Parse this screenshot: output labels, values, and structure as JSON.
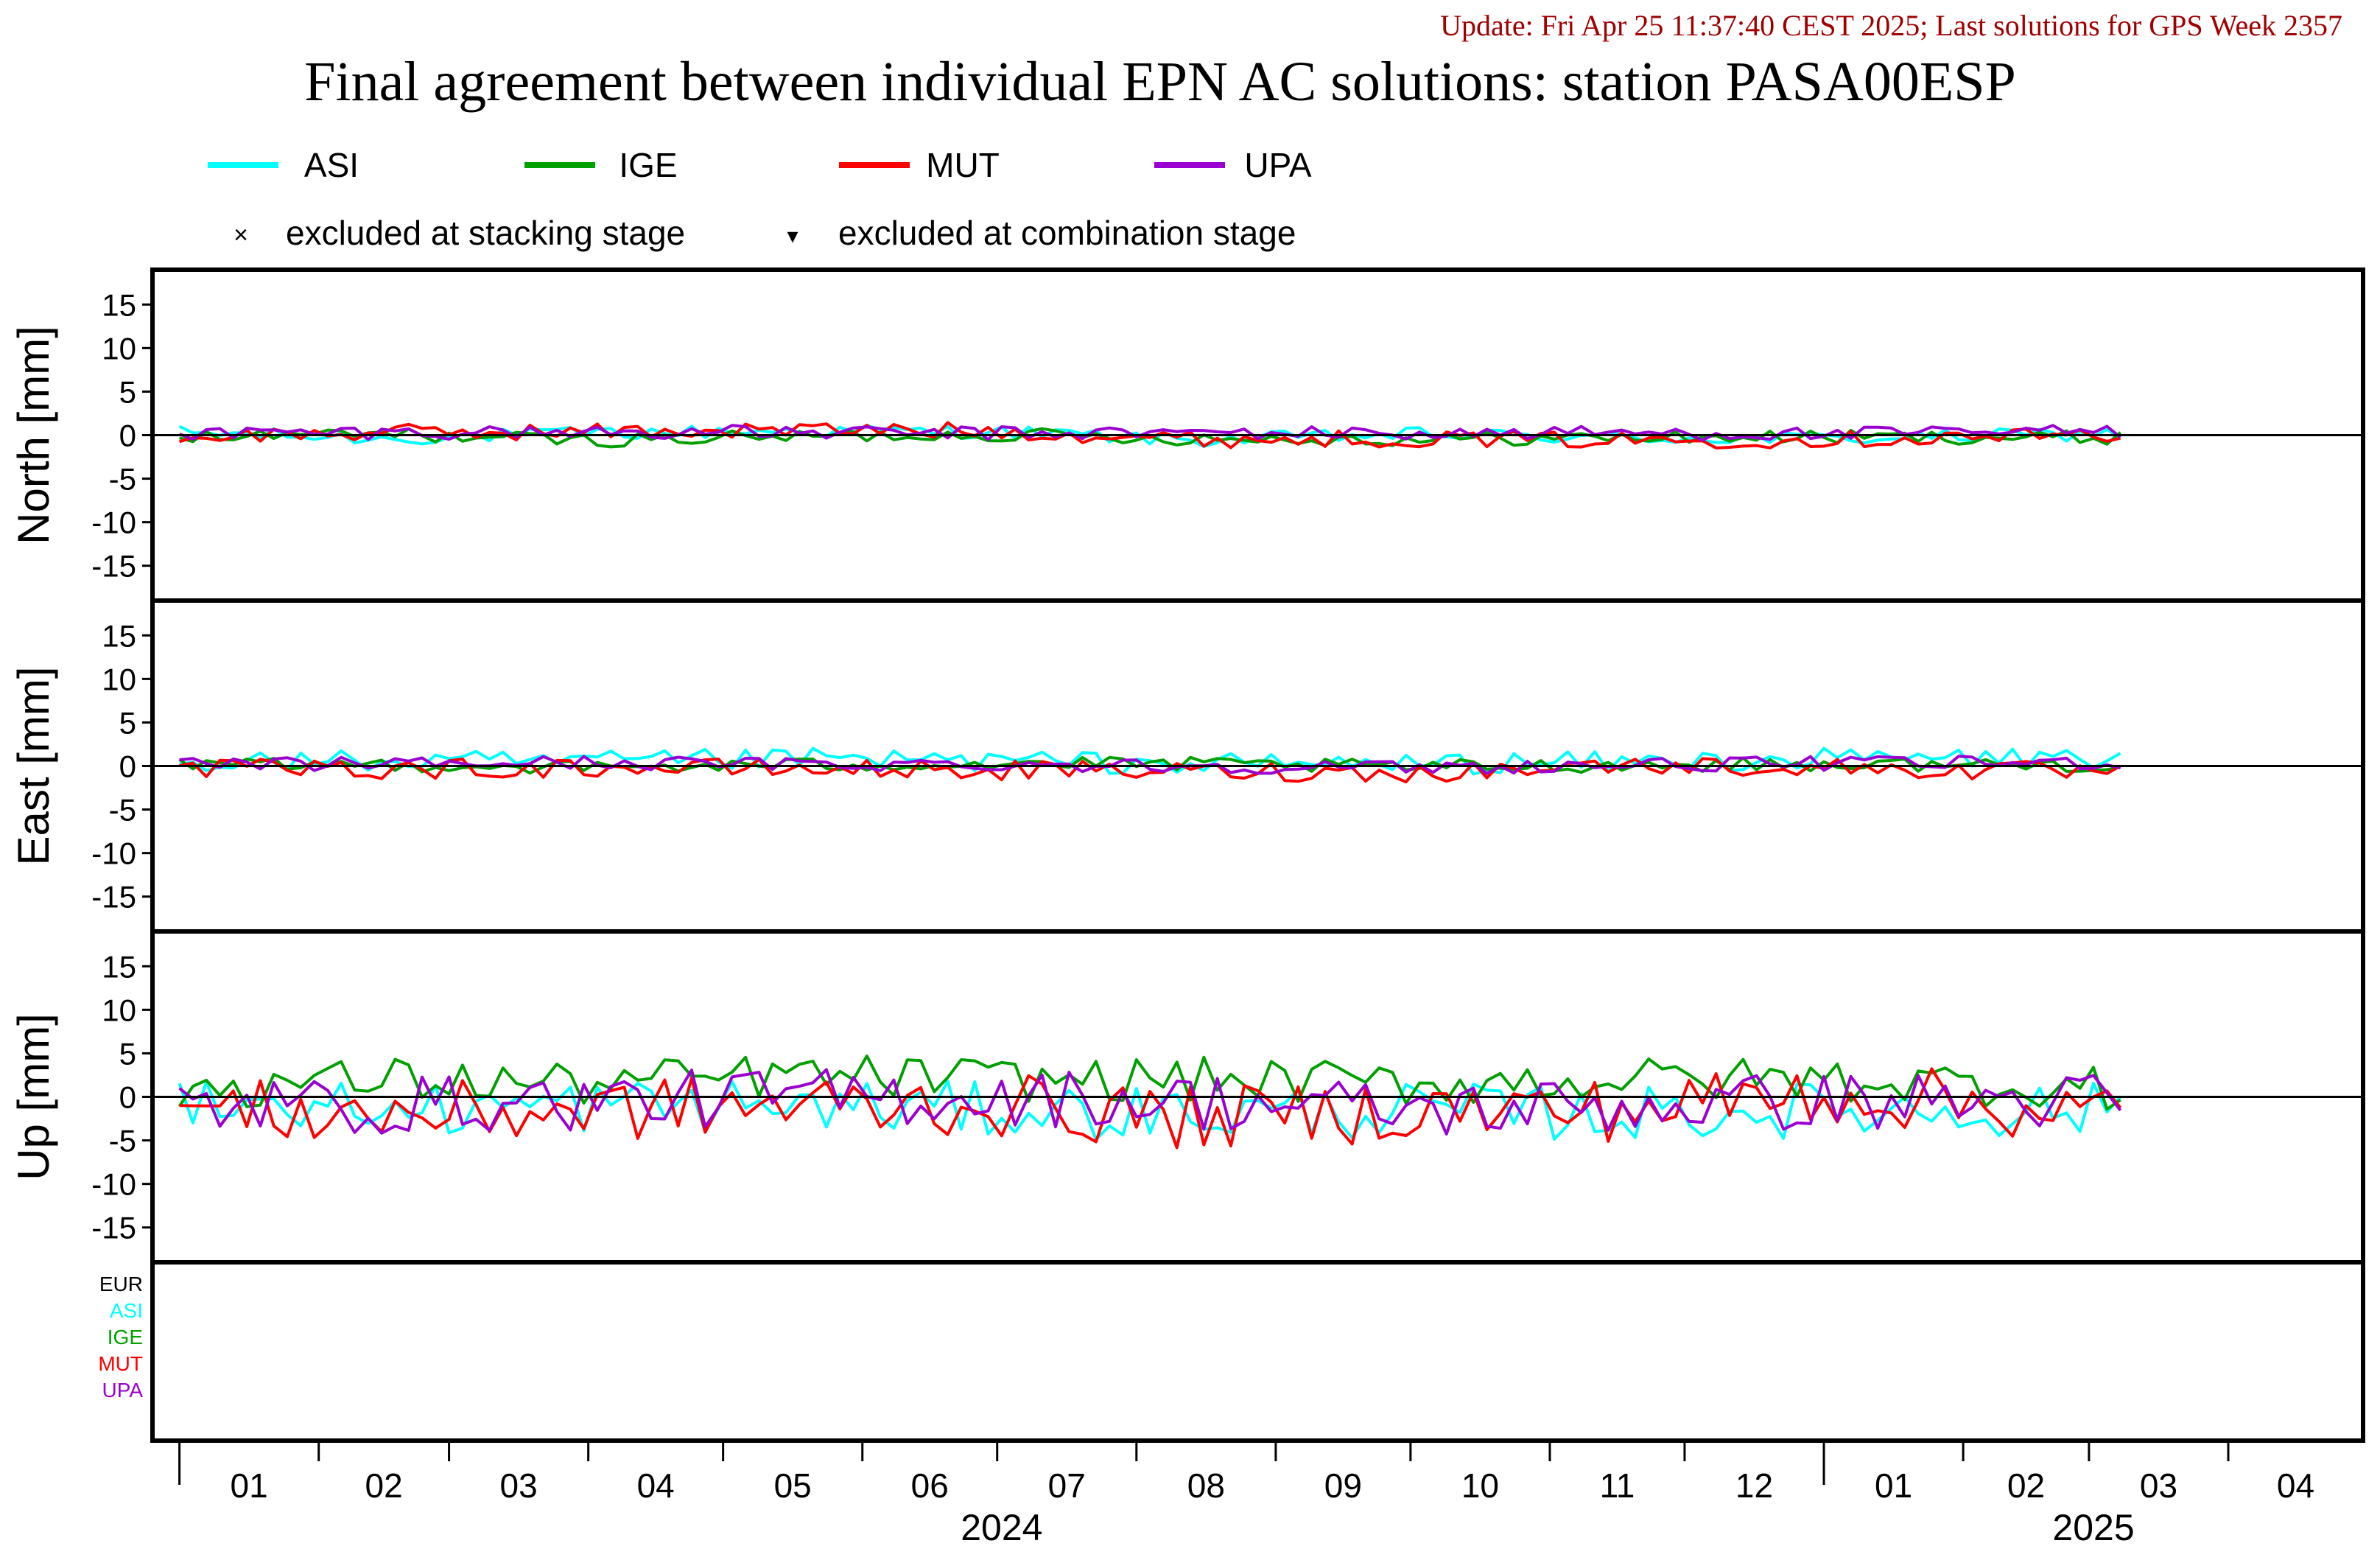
{
  "header": {
    "update_text": "Update: Fri Apr 25 11:37:40 CEST 2025; Last solutions for GPS Week 2357",
    "title": "Final agreement between individual EPN AC solutions: station PASA00ESP"
  },
  "legend": {
    "series": [
      {
        "name": "ASI",
        "color": "#00ffff"
      },
      {
        "name": "IGE",
        "color": "#00a000"
      },
      {
        "name": "MUT",
        "color": "#ff0000"
      },
      {
        "name": "UPA",
        "color": "#9a00d0"
      }
    ],
    "markers": [
      {
        "symbol": "×",
        "label": "excluded at stacking stage"
      },
      {
        "symbol": "▾",
        "label": "excluded at combination stage"
      }
    ]
  },
  "colors": {
    "title": "#000000",
    "update": "#a00000",
    "frame": "#000000"
  },
  "chart_data": {
    "type": "line",
    "title": "Final agreement between individual EPN AC solutions: station PASA00ESP",
    "xlim": [
      "2023-12-26",
      "2025-05-01"
    ],
    "ylim": [
      -19,
      19
    ],
    "yticks": [
      15,
      10,
      5,
      0,
      -5,
      -10,
      -15
    ],
    "month_ticks": [
      "01",
      "02",
      "03",
      "04",
      "05",
      "06",
      "07",
      "08",
      "09",
      "10",
      "11",
      "12",
      "01",
      "02",
      "03",
      "04"
    ],
    "years": [
      "2024",
      "2025"
    ],
    "panels": [
      {
        "ylabel": "North [mm]",
        "series": [
          {
            "name": "ASI",
            "x": [
              "2024-01-01",
              "2024-02-15",
              "2024-04-01",
              "2024-05-15",
              "2024-07-01",
              "2024-08-15",
              "2024-10-01",
              "2024-11-15",
              "2025-01-01",
              "2025-03-10"
            ],
            "values": [
              0.3,
              -0.4,
              0.2,
              0.5,
              0.4,
              -0.6,
              0.1,
              -0.3,
              -0.4,
              0.2
            ]
          },
          {
            "name": "IGE",
            "x": [
              "2024-01-01",
              "2024-02-15",
              "2024-04-01",
              "2024-05-15",
              "2024-07-01",
              "2024-08-15",
              "2024-10-01",
              "2024-11-15",
              "2025-01-01",
              "2025-03-10"
            ],
            "values": [
              -0.3,
              0.1,
              -0.6,
              -0.2,
              0.1,
              -0.4,
              -0.5,
              -0.3,
              -0.2,
              -0.3
            ]
          },
          {
            "name": "MUT",
            "x": [
              "2024-01-01",
              "2024-02-15",
              "2024-04-01",
              "2024-05-15",
              "2024-07-01",
              "2024-08-15",
              "2024-10-01",
              "2024-11-15",
              "2025-01-01",
              "2025-03-10"
            ],
            "values": [
              -0.2,
              0.3,
              0.4,
              0.6,
              0.5,
              -0.5,
              -0.4,
              -0.6,
              -0.5,
              0.1
            ]
          },
          {
            "name": "UPA",
            "x": [
              "2024-01-01",
              "2024-02-15",
              "2024-04-01",
              "2024-05-15",
              "2024-07-01",
              "2024-08-15",
              "2024-10-01",
              "2024-11-15",
              "2025-01-01",
              "2025-03-10"
            ],
            "values": [
              0.2,
              0.3,
              0.4,
              0.3,
              0.2,
              0.3,
              0.2,
              0.3,
              0.1,
              0.5
            ]
          }
        ]
      },
      {
        "ylabel": "East [mm]",
        "series": [
          {
            "name": "ASI",
            "x": [
              "2024-01-01",
              "2024-02-15",
              "2024-04-01",
              "2024-05-15",
              "2024-07-01",
              "2024-08-15",
              "2024-10-01",
              "2024-11-15",
              "2025-01-01",
              "2025-03-10"
            ],
            "values": [
              0.6,
              0.5,
              0.4,
              0.8,
              0.6,
              0.2,
              0.3,
              0.4,
              0.8,
              1.0
            ]
          },
          {
            "name": "IGE",
            "x": [
              "2024-01-01",
              "2024-02-15",
              "2024-04-01",
              "2024-05-15",
              "2024-07-01",
              "2024-08-15",
              "2024-10-01",
              "2024-11-15",
              "2025-01-01",
              "2025-03-10"
            ],
            "values": [
              0.0,
              0.2,
              -0.2,
              0.1,
              0.3,
              0.2,
              -0.1,
              0.1,
              0.2,
              0.1
            ]
          },
          {
            "name": "MUT",
            "x": [
              "2024-01-01",
              "2024-02-15",
              "2024-04-01",
              "2024-05-15",
              "2024-07-01",
              "2024-08-15",
              "2024-10-01",
              "2024-11-15",
              "2025-01-01",
              "2025-03-10"
            ],
            "values": [
              -0.3,
              -0.4,
              -0.2,
              -0.3,
              -0.5,
              -0.6,
              -0.8,
              0.1,
              -0.2,
              -0.8
            ]
          },
          {
            "name": "UPA",
            "x": [
              "2024-01-01",
              "2024-02-15",
              "2024-04-01",
              "2024-05-15",
              "2024-07-01",
              "2024-08-15",
              "2024-10-01",
              "2024-11-15",
              "2025-01-01",
              "2025-03-10"
            ],
            "values": [
              0.1,
              0.3,
              0.4,
              0.2,
              0.2,
              0.0,
              -0.2,
              0.1,
              0.3,
              0.4
            ]
          }
        ]
      },
      {
        "ylabel": "Up [mm]",
        "series": [
          {
            "name": "ASI",
            "x": [
              "2024-01-01",
              "2024-02-15",
              "2024-04-01",
              "2024-05-15",
              "2024-07-01",
              "2024-08-15",
              "2024-10-01",
              "2024-11-15",
              "2025-01-01",
              "2025-03-10"
            ],
            "values": [
              0.0,
              -1.5,
              -1.0,
              -1.0,
              -1.5,
              -2.0,
              -1.5,
              -2.0,
              -1.5,
              -1.5
            ]
          },
          {
            "name": "IGE",
            "x": [
              "2024-01-01",
              "2024-02-15",
              "2024-04-01",
              "2024-05-15",
              "2024-07-01",
              "2024-08-15",
              "2024-10-01",
              "2024-11-15",
              "2025-01-01",
              "2025-03-10"
            ],
            "values": [
              1.0,
              2.0,
              1.5,
              2.5,
              2.0,
              2.0,
              1.5,
              2.0,
              2.0,
              1.0
            ]
          },
          {
            "name": "MUT",
            "x": [
              "2024-01-01",
              "2024-02-15",
              "2024-04-01",
              "2024-05-15",
              "2024-07-01",
              "2024-08-15",
              "2024-10-01",
              "2024-11-15",
              "2025-01-01",
              "2025-03-10"
            ],
            "values": [
              -1.5,
              -2.0,
              -1.5,
              -1.0,
              -1.0,
              -2.5,
              -1.5,
              -1.5,
              0.5,
              -2.0
            ]
          },
          {
            "name": "UPA",
            "x": [
              "2024-01-01",
              "2024-02-15",
              "2024-04-01",
              "2024-05-15",
              "2024-07-01",
              "2024-08-15",
              "2024-10-01",
              "2024-11-15",
              "2025-01-01",
              "2025-03-10"
            ],
            "values": [
              -1.0,
              -1.0,
              -0.5,
              0.0,
              0.0,
              -0.5,
              -1.5,
              -1.0,
              -0.5,
              -0.5
            ]
          }
        ]
      }
    ],
    "bottom_panel_labels": [
      {
        "name": "EUR",
        "color": "#000000"
      },
      {
        "name": "ASI",
        "color": "#00ffff"
      },
      {
        "name": "IGE",
        "color": "#00a000"
      },
      {
        "name": "MUT",
        "color": "#ff0000"
      },
      {
        "name": "UPA",
        "color": "#9a00d0"
      }
    ],
    "grid": false,
    "legend_placement": "top"
  }
}
